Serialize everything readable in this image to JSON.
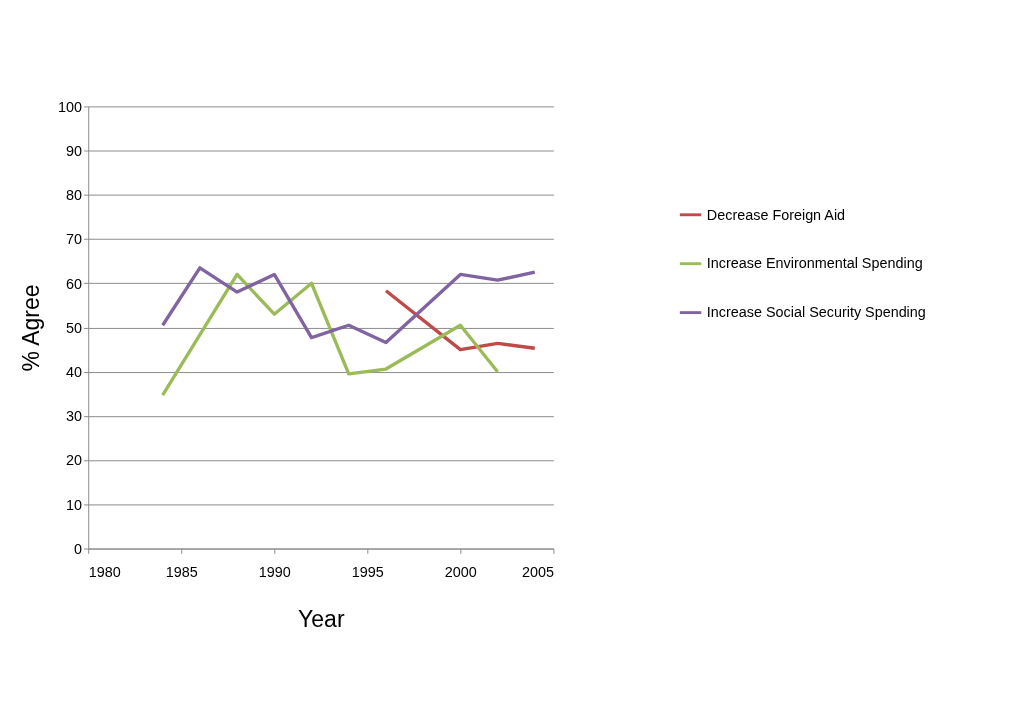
{
  "chart_data": {
    "type": "line",
    "xlabel": "Year",
    "ylabel": "% Agree",
    "xlim": [
      1980,
      2005
    ],
    "xticks": [
      1980,
      1985,
      1990,
      1995,
      2000,
      2005
    ],
    "ylim": [
      0,
      100
    ],
    "yticks": [
      0,
      10,
      20,
      30,
      40,
      50,
      60,
      70,
      80,
      90,
      100
    ],
    "grid": "y",
    "legend": "right",
    "marker": "none",
    "line_style": "solid",
    "series": [
      {
        "name": "Decrease Foreign Aid",
        "color": "#be4b48",
        "x": [
          1996,
          2000,
          2002,
          2004
        ],
        "values": [
          58.3,
          45,
          46.4,
          45.3
        ]
      },
      {
        "name": "Increase Environmental Spending",
        "color": "#9bbb59",
        "x": [
          1984,
          1988,
          1990,
          1992,
          1994,
          1996,
          2000,
          2002
        ],
        "values": [
          34.7,
          62,
          53,
          60,
          39.5,
          40.6,
          50.5,
          40
        ]
      },
      {
        "name": "Increase Social Security Spending",
        "color": "#8064a2",
        "x": [
          1984,
          1986,
          1988,
          1990,
          1992,
          1994,
          1996,
          2000,
          2002,
          2004
        ],
        "values": [
          50.5,
          63.5,
          58,
          62,
          47.7,
          50.5,
          46.6,
          62,
          60.7,
          62.5
        ]
      }
    ]
  }
}
